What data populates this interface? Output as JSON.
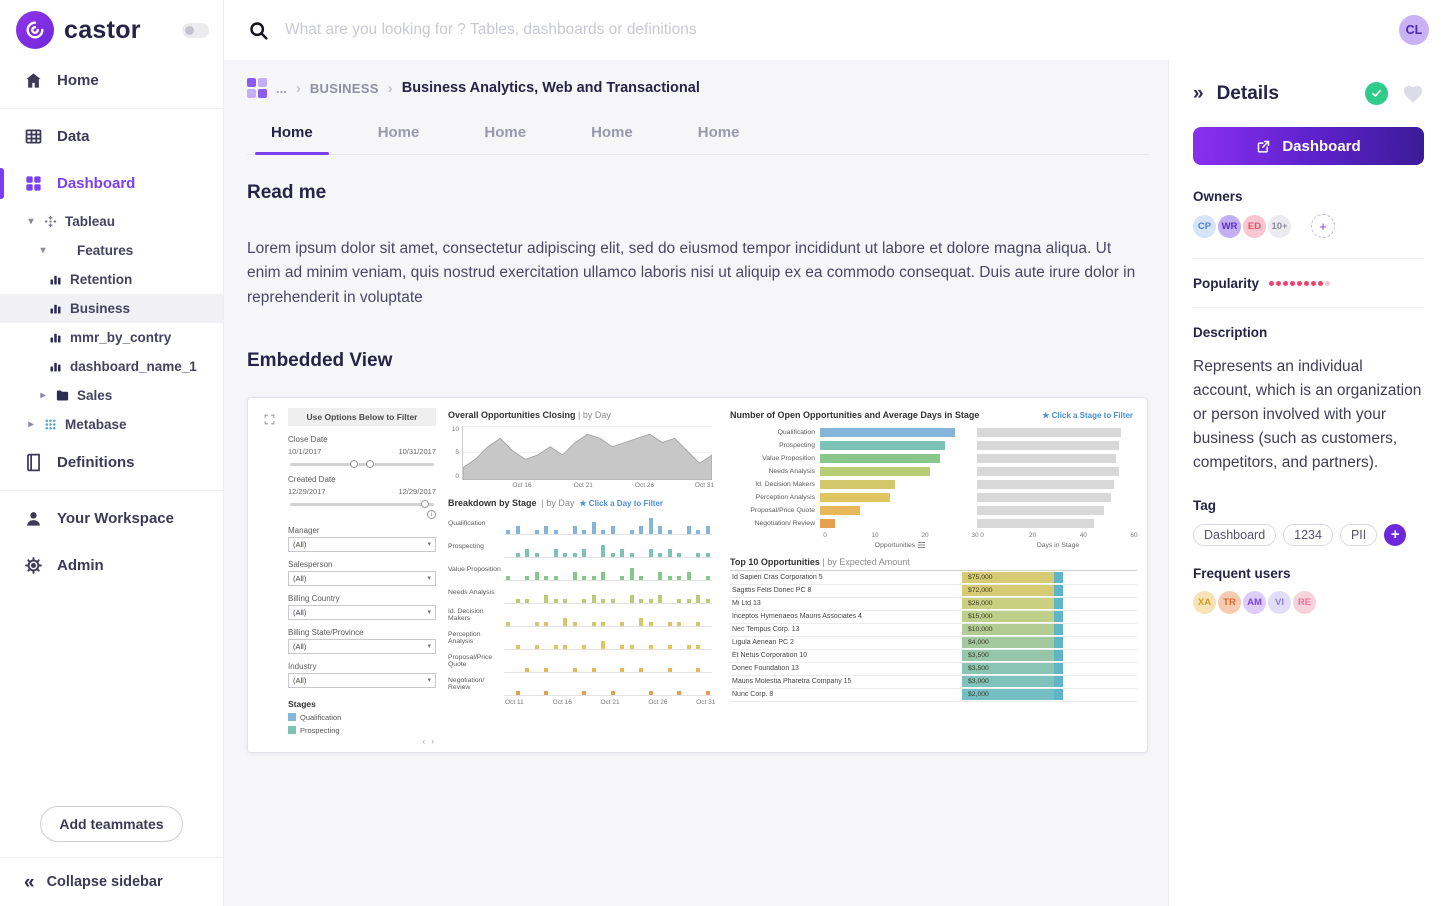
{
  "app": {
    "logo_text": "castor",
    "search_placeholder": "What are you looking for ? Tables, dashboards or definitions",
    "user_initials": "CL"
  },
  "icons": {
    "caret_down": "▾",
    "caret_right": "▸",
    "collapse_left": "«",
    "expand_right": "»",
    "chevron_right": "›",
    "plus": "+",
    "info": "i",
    "pager": "‹ ›"
  },
  "colors": {
    "accent": "#7b3ff2",
    "success": "#2ecb8a",
    "popularity": "#f0416b",
    "popularity_faded": "#f6c3d0"
  },
  "sidebar": {
    "home": "Home",
    "data": "Data",
    "dashboard": "Dashboard",
    "definitions": "Definitions",
    "workspace": "Your Workspace",
    "admin": "Admin",
    "add_teammates": "Add teammates",
    "collapse": "Collapse sidebar",
    "tree": {
      "tableau": "Tableau",
      "features": "Features",
      "retention": "Retention",
      "business": "Business",
      "mmr": "mmr_by_contry",
      "dashboard_name_1": "dashboard_name_1",
      "sales": "Sales",
      "metabase": "Metabase"
    }
  },
  "breadcrumb": {
    "ellipsis": "...",
    "root": "BUSINESS",
    "current": "Business Analytics, Web and Transactional"
  },
  "tabs": [
    "Home",
    "Home",
    "Home",
    "Home",
    "Home"
  ],
  "readme": {
    "title": "Read me",
    "body": "Lorem ipsum dolor sit amet, consectetur adipiscing elit, sed do eiusmod tempor incididunt ut labore et dolore magna aliqua. Ut enim ad minim veniam, quis nostrud exercitation ullamco laboris nisi ut aliquip ex ea commodo consequat. Duis aute irure dolor in reprehenderit in voluptate"
  },
  "embedded": {
    "title": "Embedded View"
  },
  "tableau": {
    "filters": {
      "header": "Use Options Below to Filter",
      "close_date": {
        "label": "Close Date",
        "start": "10/1/2017",
        "end": "10/31/2017"
      },
      "created_date": {
        "label": "Created Date",
        "start": "12/29/2017",
        "end": "12/29/2017"
      },
      "dropdowns": [
        {
          "label": "Manager",
          "value": "(All)"
        },
        {
          "label": "Salesperson",
          "value": "(All)"
        },
        {
          "label": "Billing Country",
          "value": "(All)"
        },
        {
          "label": "Billing State/Province",
          "value": "(All)"
        },
        {
          "label": "Industry",
          "value": "(All)"
        }
      ],
      "stages_label": "Stages",
      "stages_legend": [
        {
          "label": "Qualification",
          "color": "#85b6d9"
        },
        {
          "label": "Prospecting",
          "color": "#7cc3b6"
        }
      ]
    },
    "overall": {
      "title": "Overall Opportunities Closing",
      "subtitle": "| by Day",
      "type": "area",
      "y_ticks": [
        10,
        5,
        0
      ],
      "y_max": 12,
      "x_ticks": [
        "Oct 16",
        "Oct 21",
        "Oct 26",
        "Oct 31"
      ],
      "values": [
        3,
        5,
        8,
        10,
        7,
        5,
        6,
        8,
        6,
        9,
        11,
        10,
        8,
        9,
        10,
        11,
        9,
        10,
        7,
        4,
        6
      ]
    },
    "breakdown": {
      "title": "Breakdown by Stage",
      "subtitle": "| by Day",
      "filter_hint": "★ Click a Day to Filter",
      "x_ticks": [
        "Oct 11",
        "Oct 16",
        "Oct 21",
        "Oct 26",
        "Oct 31"
      ],
      "rows": [
        {
          "stage": "Qualification",
          "color": "#85b6d9",
          "values": [
            1,
            2,
            0,
            1,
            2,
            1,
            0,
            2,
            1,
            3,
            1,
            2,
            0,
            1,
            2,
            4,
            2,
            1,
            0,
            2,
            1,
            2
          ]
        },
        {
          "stage": "Prospecting",
          "color": "#7cc3b6",
          "values": [
            0,
            1,
            2,
            1,
            0,
            2,
            1,
            1,
            2,
            0,
            3,
            1,
            2,
            1,
            0,
            2,
            1,
            2,
            1,
            0,
            1,
            1
          ]
        },
        {
          "stage": "Value Proposition",
          "color": "#88c789",
          "values": [
            1,
            0,
            1,
            2,
            1,
            1,
            0,
            2,
            1,
            1,
            2,
            0,
            1,
            3,
            1,
            0,
            2,
            1,
            1,
            2,
            0,
            1
          ]
        },
        {
          "stage": "Needs Analysis",
          "color": "#b9cd77",
          "values": [
            0,
            1,
            1,
            0,
            2,
            1,
            1,
            0,
            1,
            2,
            1,
            1,
            0,
            2,
            1,
            1,
            2,
            0,
            1,
            1,
            2,
            1
          ]
        },
        {
          "stage": "Id. Decision Makers",
          "color": "#d3c76b",
          "values": [
            1,
            0,
            0,
            1,
            1,
            0,
            2,
            1,
            0,
            1,
            1,
            0,
            1,
            0,
            2,
            1,
            0,
            1,
            1,
            0,
            1,
            0
          ]
        },
        {
          "stage": "Perception Analysis",
          "color": "#dfc45f",
          "values": [
            0,
            1,
            0,
            1,
            0,
            1,
            1,
            0,
            1,
            0,
            2,
            0,
            1,
            1,
            0,
            1,
            0,
            1,
            0,
            1,
            1,
            0
          ]
        },
        {
          "stage": "Proposal/Price Quote",
          "color": "#e7b75a",
          "values": [
            0,
            0,
            1,
            0,
            1,
            0,
            0,
            1,
            0,
            1,
            0,
            0,
            1,
            0,
            1,
            0,
            0,
            1,
            0,
            0,
            1,
            0
          ]
        },
        {
          "stage": "Negotiation/ Review",
          "color": "#e5a04e",
          "values": [
            0,
            1,
            0,
            0,
            1,
            0,
            0,
            0,
            1,
            0,
            0,
            1,
            0,
            0,
            0,
            1,
            0,
            0,
            1,
            0,
            0,
            1
          ]
        }
      ]
    },
    "open_opps": {
      "title": "Number of Open Opportunities and Average Days in Stage",
      "filter_hint": "★ Click a Stage to Filter",
      "left_axis": {
        "ticks": [
          0,
          10,
          20,
          30
        ],
        "label": "Opportunities",
        "max": 30
      },
      "right_axis": {
        "ticks": [
          0,
          20,
          40,
          60
        ],
        "label": "Days in Stage",
        "max": 60
      },
      "rows": [
        {
          "stage": "Qualification",
          "color": "#85b6d9",
          "opportunities": 27,
          "days": 57
        },
        {
          "stage": "Prospecting",
          "color": "#7cc3b6",
          "opportunities": 25,
          "days": 56
        },
        {
          "stage": "Value Proposition",
          "color": "#88c789",
          "opportunities": 24,
          "days": 55
        },
        {
          "stage": "Needs Analysis",
          "color": "#b9cd77",
          "opportunities": 22,
          "days": 56
        },
        {
          "stage": "Id. Decision Makers",
          "color": "#d3c76b",
          "opportunities": 15,
          "days": 54
        },
        {
          "stage": "Perception Analysis",
          "color": "#dfc45f",
          "opportunities": 14,
          "days": 53
        },
        {
          "stage": "Proposal/Price Quote",
          "color": "#e7b75a",
          "opportunities": 8,
          "days": 50
        },
        {
          "stage": "Negotiation/ Review",
          "color": "#e5a04e",
          "opportunities": 3,
          "days": 46
        }
      ]
    },
    "top10": {
      "title": "Top 10 Opportunities",
      "subtitle": "| by Expected Amount",
      "rows": [
        {
          "name": "Id Sapien Cras Corporation 5",
          "amount": "$75,000",
          "color": "#d6cb74"
        },
        {
          "name": "Sagittis Felis Donec PC 8",
          "amount": "$72,000",
          "color": "#d6cb74"
        },
        {
          "name": "Mi Ltd 13",
          "amount": "$26,000",
          "color": "#cbcf80"
        },
        {
          "name": "Inceptos Hymenaeos Mauris Associates 4",
          "amount": "$15,000",
          "color": "#bfce89"
        },
        {
          "name": "Nec Tempus Corp. 13",
          "amount": "$10,000",
          "color": "#b2cc93"
        },
        {
          "name": "Ligula Aenean PC 2",
          "amount": "$4,000",
          "color": "#a3c99e"
        },
        {
          "name": "Et Netus Corporation 10",
          "amount": "$3,500",
          "color": "#95c6a9"
        },
        {
          "name": "Donec Foundation 13",
          "amount": "$3,500",
          "color": "#8ac4b2"
        },
        {
          "name": "Mauris Molestia Pharetra Company 15",
          "amount": "$3,000",
          "color": "#7fc2bb"
        },
        {
          "name": "Nunc Corp. 8",
          "amount": "$2,000",
          "color": "#74bfc4"
        }
      ]
    }
  },
  "details": {
    "title": "Details",
    "open_button": "Dashboard",
    "owners_label": "Owners",
    "owners": [
      {
        "initials": "CP",
        "bg": "#d6e4f7",
        "fg": "#4d82d6"
      },
      {
        "initials": "WR",
        "bg": "#c3aef2",
        "fg": "#5b2fd4"
      },
      {
        "initials": "ED",
        "bg": "#f7c6ce",
        "fg": "#e0556e"
      },
      {
        "initials": "10+",
        "bg": "#ececf0",
        "fg": "#8a8a9a"
      }
    ],
    "popularity_label": "Popularity",
    "popularity": {
      "filled": 8,
      "total": 9
    },
    "description_label": "Description",
    "description": "Represents an individual account, which is an organization or person involved with your business (such as customers, competitors, and partners).",
    "tag_label": "Tag",
    "tags": [
      "Dashboard",
      "1234",
      "PII"
    ],
    "frequent_label": "Frequent users",
    "frequent_users": [
      {
        "initials": "XA",
        "bg": "#f7e3b5",
        "fg": "#d49a2a"
      },
      {
        "initials": "TR",
        "bg": "#f7cbb0",
        "fg": "#e06a35"
      },
      {
        "initials": "AM",
        "bg": "#ddcdf7",
        "fg": "#7b3ff2"
      },
      {
        "initials": "VI",
        "bg": "#e3def7",
        "fg": "#8f7fdb"
      },
      {
        "initials": "RE",
        "bg": "#f7d3de",
        "fg": "#e8769a"
      }
    ]
  }
}
